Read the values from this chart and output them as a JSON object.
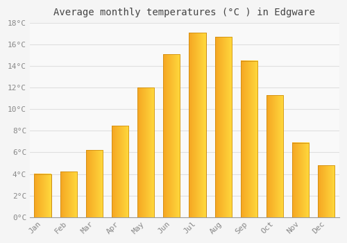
{
  "title": "Average monthly temperatures (°C ) in Edgware",
  "months": [
    "Jan",
    "Feb",
    "Mar",
    "Apr",
    "May",
    "Jun",
    "Jul",
    "Aug",
    "Sep",
    "Oct",
    "Nov",
    "Dec"
  ],
  "temperatures": [
    4.0,
    4.2,
    6.2,
    8.5,
    12.0,
    15.1,
    17.1,
    16.7,
    14.5,
    11.3,
    6.9,
    4.8
  ],
  "bar_color_left": "#F5A623",
  "bar_color_right": "#FFD93D",
  "bar_border_color": "#C8860A",
  "ylim": [
    0,
    18
  ],
  "yticks": [
    0,
    2,
    4,
    6,
    8,
    10,
    12,
    14,
    16,
    18
  ],
  "ytick_labels": [
    "0°C",
    "2°C",
    "4°C",
    "6°C",
    "8°C",
    "10°C",
    "12°C",
    "14°C",
    "16°C",
    "18°C"
  ],
  "background_color": "#f5f5f5",
  "plot_bg_color": "#f9f9f9",
  "grid_color": "#e0e0e0",
  "title_fontsize": 10,
  "tick_fontsize": 8,
  "tick_color": "#888888",
  "bar_width": 0.65
}
